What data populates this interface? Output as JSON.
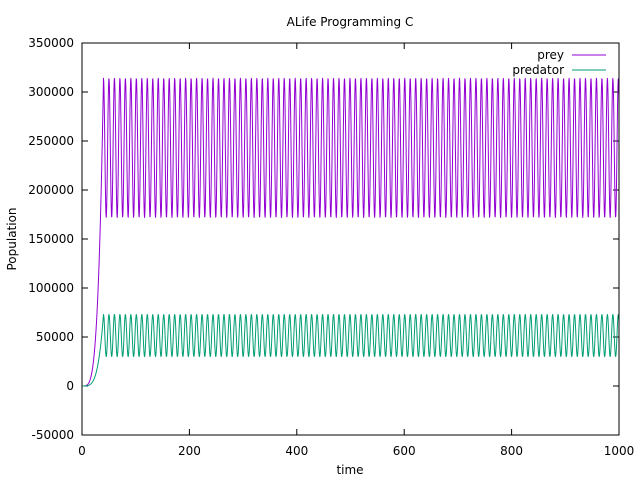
{
  "chart_data": {
    "type": "line",
    "title": "ALife Programming C",
    "xlabel": "time",
    "ylabel": "Population",
    "xlim": [
      0,
      1000
    ],
    "ylim": [
      -50000,
      350000
    ],
    "xticks": [
      "0",
      "200",
      "400",
      "600",
      "800",
      "1000"
    ],
    "yticks": [
      "-50000",
      "0",
      "50000",
      "100000",
      "150000",
      "200000",
      "250000",
      "300000",
      "350000"
    ],
    "grid": false,
    "legend_position": "top-right",
    "series": [
      {
        "name": "prey",
        "color": "#9400d3",
        "initial": 0,
        "growth_end_x": 40,
        "oscillation": {
          "max": 314000,
          "min": 172000,
          "period": 10.2,
          "x_start": 40,
          "x_end": 1000
        }
      },
      {
        "name": "predator",
        "color": "#009e73",
        "initial": 0,
        "growth_end_x": 40,
        "oscillation": {
          "max": 73000,
          "min": 30000,
          "period": 10.2,
          "x_start": 40,
          "x_end": 1000
        }
      }
    ]
  }
}
